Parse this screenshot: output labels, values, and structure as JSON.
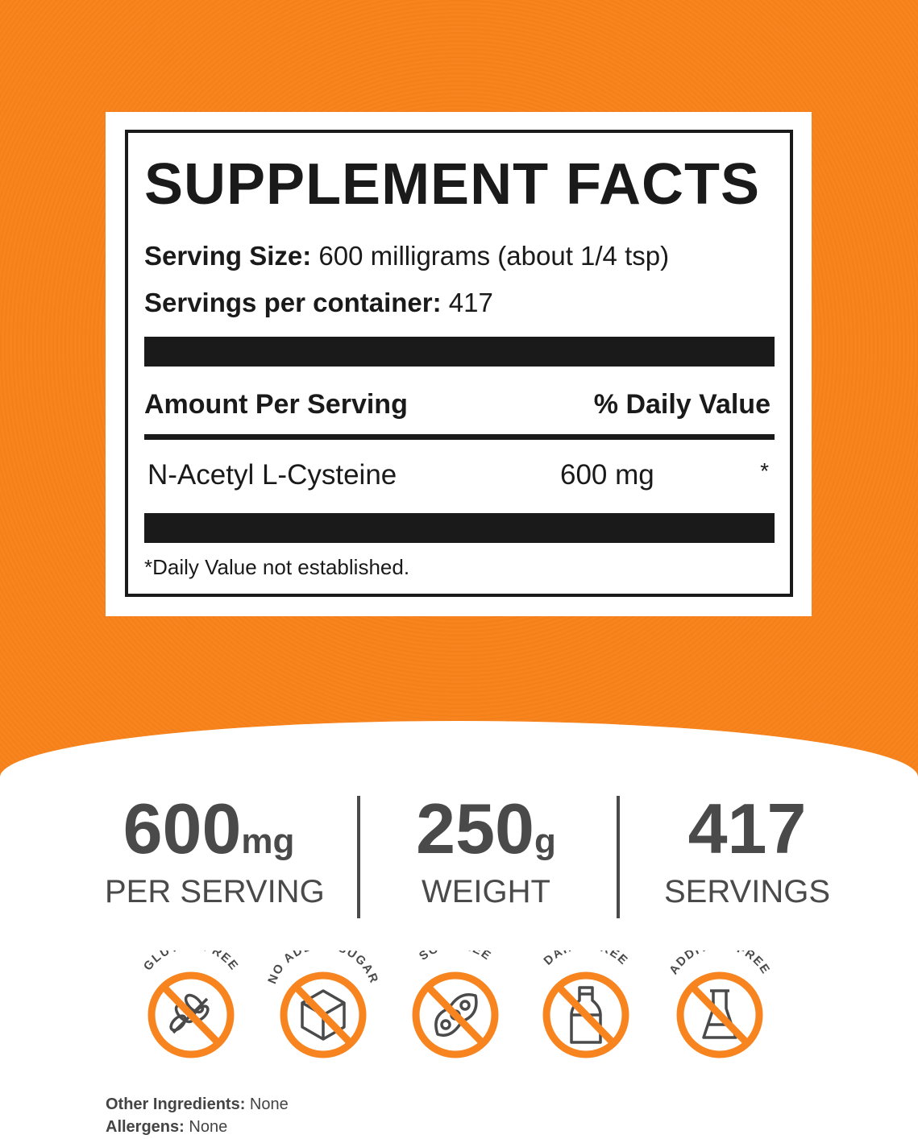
{
  "label": {
    "title": "SUPPLEMENT FACTS",
    "serving_size_label": "Serving Size:",
    "serving_size_value": "600 milligrams (about 1/4 tsp)",
    "servings_label": "Servings per container:",
    "servings_value": "417",
    "amount_header": "Amount Per Serving",
    "dv_header": "% Daily Value",
    "nutrient": {
      "name": "N-Acetyl L-Cysteine",
      "amount": "600 mg",
      "dv": "*"
    },
    "footnote": "*Daily Value not established."
  },
  "stats": [
    {
      "value": "600",
      "unit": "mg",
      "label": "PER SERVING"
    },
    {
      "value": "250",
      "unit": "g",
      "label": "WEIGHT"
    },
    {
      "value": "417",
      "unit": "",
      "label": "SERVINGS"
    }
  ],
  "badges": [
    {
      "text": "GLUTEN FREE",
      "icon": "wheat-icon"
    },
    {
      "text": "NO ADDED SUGAR",
      "icon": "sugar-cube-icon"
    },
    {
      "text": "SOY FREE",
      "icon": "soybean-icon"
    },
    {
      "text": "DAIRY FREE",
      "icon": "milk-bottle-icon"
    },
    {
      "text": "ADDITIVE FREE",
      "icon": "flask-icon"
    }
  ],
  "other_ingredients": {
    "label": "Other Ingredients:",
    "value": "None"
  },
  "allergens": {
    "label": "Allergens:",
    "value": "None"
  },
  "colors": {
    "brand_orange": "#f7841f",
    "text_dark": "#1a1a1a",
    "stat_gray": "#4a4a4a"
  }
}
